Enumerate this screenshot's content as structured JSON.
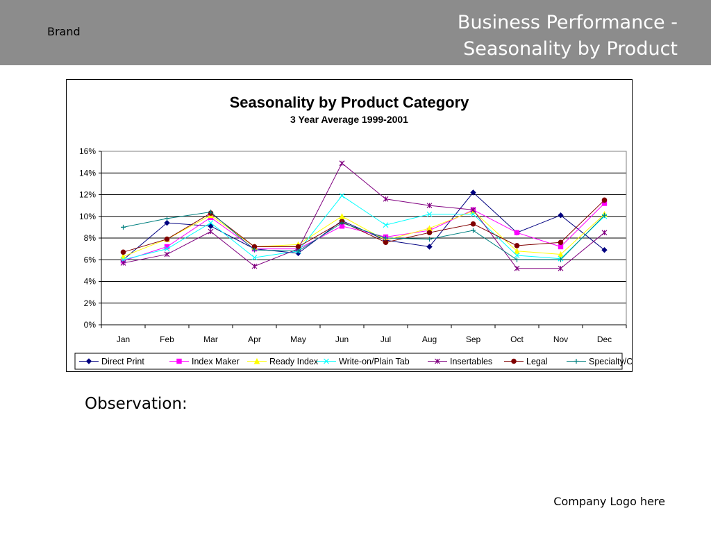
{
  "header": {
    "brand": "Brand",
    "title_line1": "Business Performance -",
    "title_line2": "Seasonality by Product"
  },
  "observation_label": "Observation:",
  "logo_text": "Company Logo here",
  "chart_data": {
    "type": "line",
    "title": "Seasonality by  Product Category",
    "subtitle": "3 Year Average 1999-2001",
    "categories": [
      "Jan",
      "Feb",
      "Mar",
      "Apr",
      "May",
      "Jun",
      "Jul",
      "Aug",
      "Sep",
      "Oct",
      "Nov",
      "Dec"
    ],
    "ylim": [
      0,
      16
    ],
    "yticks": [
      0,
      2,
      4,
      6,
      8,
      10,
      12,
      14,
      16
    ],
    "ytick_labels": [
      "0%",
      "2%",
      "4%",
      "6%",
      "8%",
      "10%",
      "12%",
      "14%",
      "16%"
    ],
    "grid": true,
    "legend": "bottom",
    "series": [
      {
        "name": "Direct Print",
        "color": "#000080",
        "marker": "diamond",
        "values": [
          6.0,
          9.4,
          9.1,
          7.0,
          6.6,
          9.6,
          7.8,
          7.2,
          12.2,
          8.5,
          10.1,
          6.9
        ]
      },
      {
        "name": "Index Maker",
        "color": "#ff00ff",
        "marker": "square",
        "values": [
          5.9,
          7.2,
          9.9,
          7.0,
          7.0,
          9.1,
          8.1,
          8.7,
          10.6,
          8.5,
          7.2,
          11.2
        ]
      },
      {
        "name": "Ready Index",
        "color": "#ffff00",
        "marker": "triangle",
        "values": [
          6.3,
          7.9,
          10.1,
          7.2,
          7.4,
          10.0,
          7.8,
          8.9,
          10.5,
          6.8,
          6.5,
          10.2
        ]
      },
      {
        "name": "Write-on/Plain Tab",
        "color": "#00ffff",
        "marker": "x",
        "values": [
          6.0,
          7.0,
          9.4,
          6.2,
          6.8,
          11.9,
          9.2,
          10.2,
          10.2,
          6.4,
          6.1,
          10.0
        ]
      },
      {
        "name": "Insertables",
        "color": "#800080",
        "marker": "star",
        "values": [
          5.7,
          6.5,
          8.6,
          5.4,
          7.0,
          14.9,
          11.6,
          11.0,
          10.6,
          5.2,
          5.2,
          8.5
        ]
      },
      {
        "name": "Legal",
        "color": "#800000",
        "marker": "circle",
        "values": [
          6.7,
          7.9,
          10.3,
          7.2,
          7.2,
          9.5,
          7.6,
          8.5,
          9.3,
          7.3,
          7.6,
          11.5
        ]
      },
      {
        "name": "Specialty/Other",
        "color": "#008080",
        "marker": "plus",
        "values": [
          9.0,
          9.8,
          10.4,
          6.9,
          6.8,
          9.4,
          8.0,
          7.9,
          8.7,
          6.0,
          6.0,
          10.1
        ]
      }
    ]
  }
}
